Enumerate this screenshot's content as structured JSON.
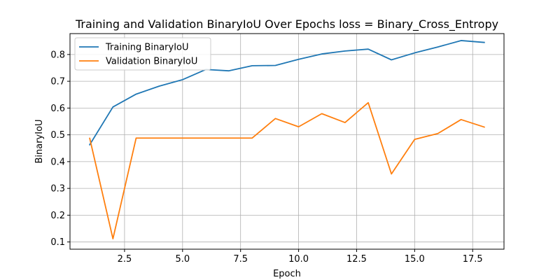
{
  "chart_data": {
    "type": "line",
    "title": "Training and Validation BinaryIoU Over Epochs loss = Binary_Cross_Entropy",
    "xlabel": "Epoch",
    "ylabel": "BinaryIoU",
    "xlim": [
      0.15,
      18.85
    ],
    "ylim": [
      0.073,
      0.878
    ],
    "xticks": [
      2.5,
      5.0,
      7.5,
      10.0,
      12.5,
      15.0,
      17.5
    ],
    "xtick_labels": [
      "2.5",
      "5.0",
      "7.5",
      "10.0",
      "12.5",
      "15.0",
      "17.5"
    ],
    "yticks": [
      0.1,
      0.2,
      0.3,
      0.4,
      0.5,
      0.6,
      0.7,
      0.8
    ],
    "ytick_labels": [
      "0.1",
      "0.2",
      "0.3",
      "0.4",
      "0.5",
      "0.6",
      "0.7",
      "0.8"
    ],
    "grid": true,
    "legend_position": "top-left",
    "x": [
      1,
      2,
      3,
      4,
      5,
      6,
      7,
      8,
      9,
      10,
      11,
      12,
      13,
      14,
      15,
      16,
      17,
      18
    ],
    "series": [
      {
        "name": "Training BinaryIoU",
        "color": "#1f77b4",
        "values": [
          0.463,
          0.604,
          0.652,
          0.682,
          0.706,
          0.744,
          0.739,
          0.758,
          0.759,
          0.782,
          0.802,
          0.813,
          0.82,
          0.78,
          0.806,
          0.828,
          0.852,
          0.845
        ]
      },
      {
        "name": "Validation BinaryIoU",
        "color": "#ff7f0e",
        "values": [
          0.487,
          0.112,
          0.488,
          0.488,
          0.488,
          0.488,
          0.488,
          0.488,
          0.561,
          0.53,
          0.579,
          0.546,
          0.62,
          0.354,
          0.483,
          0.505,
          0.557,
          0.529
        ]
      }
    ]
  }
}
